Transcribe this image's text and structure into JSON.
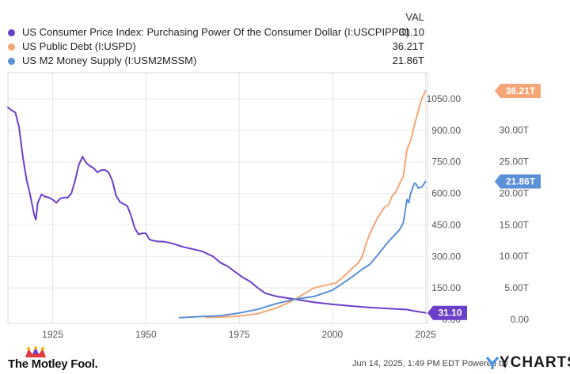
{
  "legend": {
    "header": "VAL",
    "items": [
      {
        "name": "US Consumer Price Index: Purchasing Power Of the Consumer Dollar (I:USCPIPPO)",
        "value": "31.10",
        "color": "#6a3fc9"
      },
      {
        "name": "US Public Debt (I:USPD)",
        "value": "36.21T",
        "color": "#f5a676"
      },
      {
        "name": "US M2 Money Supply (I:USM2MSSM)",
        "value": "21.86T",
        "color": "#5b8fd6"
      }
    ]
  },
  "footer": {
    "brand": "The Motley Fool.",
    "timestamp": "Jun 14, 2025, 1:49 PM EDT  Powered by",
    "ycharts": "YCHARTS"
  },
  "chart_data": {
    "type": "line",
    "title": "",
    "xlabel": "",
    "x_ticks": [
      "1925",
      "1950",
      "1975",
      "2000",
      "2025"
    ],
    "xlim": [
      1913,
      2025.5
    ],
    "grid": true,
    "left_axis": {
      "ticks": [
        "1050.00",
        "900.00",
        "750.00",
        "600.00",
        "450.00",
        "300.00",
        "150.00",
        "0.00"
      ],
      "ylim": [
        0,
        1050
      ]
    },
    "right_axis": {
      "ticks": [
        "30.00T",
        "25.00T",
        "20.00T",
        "15.00T",
        "10.00T",
        "5.00T",
        "0.00"
      ],
      "ylim": [
        0,
        35
      ],
      "unit": "T"
    },
    "end_labels": [
      {
        "series": 0,
        "text": "31.10",
        "color": "#6a3fc9"
      },
      {
        "series": 1,
        "text": "36.21T",
        "color": "#f5a676"
      },
      {
        "series": 2,
        "text": "21.86T",
        "color": "#5b8fd6"
      }
    ],
    "series": [
      {
        "name": "US Consumer Price Index: Purchasing Power Of the Consumer Dollar (I:USCPIPPO)",
        "axis": "left",
        "color": "#6a3fc9",
        "x": [
          1913,
          1914,
          1915,
          1916,
          1917,
          1918,
          1919,
          1920,
          1920.5,
          1921,
          1922,
          1923,
          1924,
          1925,
          1926,
          1927,
          1928,
          1929,
          1930,
          1931,
          1932,
          1933,
          1934,
          1935,
          1936,
          1937,
          1938,
          1939,
          1940,
          1941,
          1942,
          1943,
          1944,
          1945,
          1946,
          1947,
          1948,
          1949,
          1950,
          1951,
          1952,
          1953,
          1955,
          1957,
          1960,
          1965,
          1968,
          1970,
          1972,
          1974,
          1976,
          1978,
          1980,
          1982,
          1985,
          1990,
          1995,
          2000,
          2005,
          2010,
          2015,
          2020,
          2022,
          2025
        ],
        "y": [
          1010,
          995,
          985,
          915,
          775,
          665,
          590,
          500,
          475,
          555,
          595,
          585,
          580,
          570,
          555,
          575,
          580,
          580,
          600,
          660,
          735,
          775,
          745,
          730,
          720,
          700,
          710,
          712,
          700,
          660,
          590,
          560,
          550,
          540,
          495,
          435,
          405,
          410,
          410,
          380,
          375,
          372,
          370,
          362,
          345,
          325,
          300,
          270,
          252,
          225,
          200,
          180,
          150,
          125,
          110,
          96,
          82,
          72,
          64,
          57,
          52,
          47,
          40,
          31.1
        ]
      },
      {
        "name": "US Public Debt (I:USPD)",
        "axis": "right",
        "color": "#f5a676",
        "x": [
          1966,
          1970,
          1975,
          1980,
          1985,
          1988,
          1990,
          1995,
          2000,
          2001,
          2003,
          2005,
          2007,
          2008,
          2009,
          2010,
          2012,
          2014,
          2015,
          2016,
          2017,
          2018,
          2019,
          2020,
          2021,
          2022,
          2023,
          2024,
          2025
        ],
        "y": [
          0.32,
          0.37,
          0.54,
          0.91,
          1.82,
          2.6,
          3.2,
          4.97,
          5.67,
          5.77,
          6.78,
          7.93,
          9.0,
          10.0,
          11.9,
          13.56,
          16.0,
          17.8,
          18.1,
          19.5,
          20.2,
          21.5,
          22.7,
          26.9,
          28.4,
          30.8,
          33.0,
          35.0,
          36.21
        ]
      },
      {
        "name": "US M2 Money Supply (I:USM2MSSM)",
        "axis": "right",
        "color": "#5b8fd6",
        "x": [
          1959,
          1965,
          1970,
          1975,
          1980,
          1985,
          1990,
          1995,
          2000,
          2005,
          2008,
          2010,
          2012,
          2015,
          2018,
          2019,
          2020,
          2020.5,
          2021,
          2022,
          2022.5,
          2023,
          2024,
          2025
        ],
        "y": [
          0.29,
          0.46,
          0.6,
          1.02,
          1.6,
          2.5,
          3.22,
          3.62,
          4.62,
          6.61,
          7.95,
          8.7,
          10.1,
          12.3,
          14.2,
          15.3,
          19.0,
          18.5,
          20.0,
          21.6,
          21.4,
          20.8,
          21.0,
          21.86
        ]
      }
    ]
  }
}
